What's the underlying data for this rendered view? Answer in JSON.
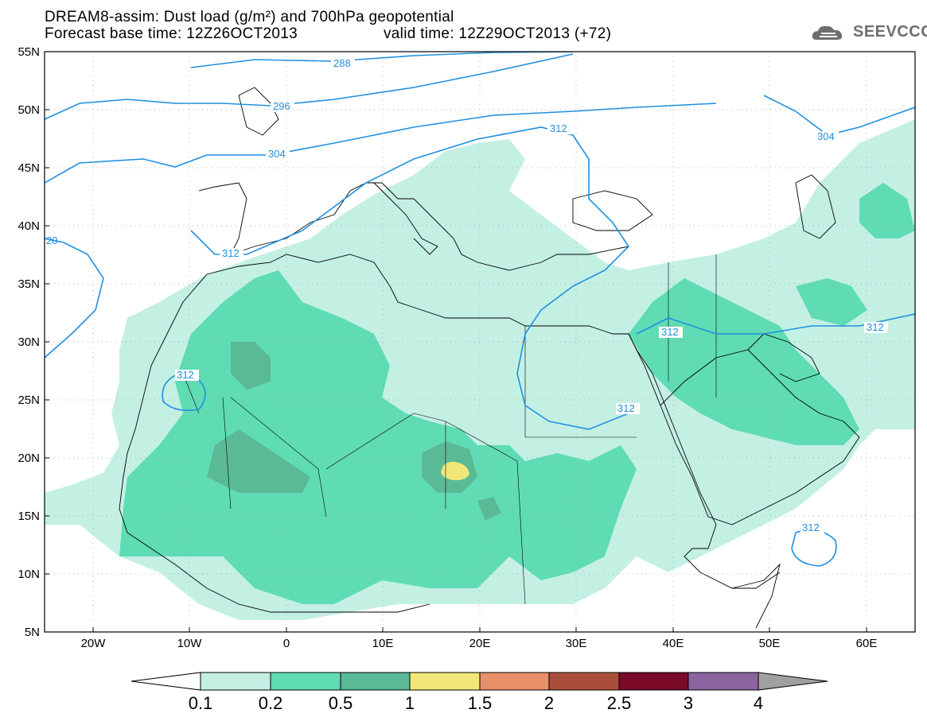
{
  "header": {
    "line1": "DREAM8-assim: Dust load (g/m²) and 700hPa geopotential",
    "line2a": "Forecast base time: 12Z26OCT2013",
    "line2b": "valid time: 12Z29OCT2013 (+72)",
    "logo_text": "SEEVCCC"
  },
  "axes": {
    "lat_labels": [
      "55N",
      "50N",
      "45N",
      "40N",
      "35N",
      "30N",
      "25N",
      "20N",
      "15N",
      "10N",
      "5N"
    ],
    "lon_labels": [
      "20W",
      "10W",
      "0",
      "10E",
      "20E",
      "30E",
      "40E",
      "50E",
      "60E"
    ]
  },
  "contours": {
    "labels": [
      "288",
      "296",
      "304",
      "312",
      "304",
      "312",
      "312",
      "312",
      "312",
      "312",
      "312",
      "20"
    ]
  },
  "colorbar": {
    "ticks": [
      "0.1",
      "0.2",
      "0.5",
      "1",
      "1.5",
      "2",
      "2.5",
      "3",
      "4"
    ],
    "colors": [
      "#c4f0e4",
      "#5fdcb4",
      "#5aba96",
      "#f0e778",
      "#e8906a",
      "#aa4e3c",
      "#7a0a28",
      "#8c64a0",
      "#a0a0a0"
    ],
    "under_color": "#ffffff"
  },
  "map_colors": {
    "land_border": "#000000",
    "contour_line": "#1e90e0",
    "dust_01": "#c4f0e4",
    "dust_02": "#5fdcb4",
    "dust_05": "#5aba96",
    "dust_1": "#f0e778"
  }
}
